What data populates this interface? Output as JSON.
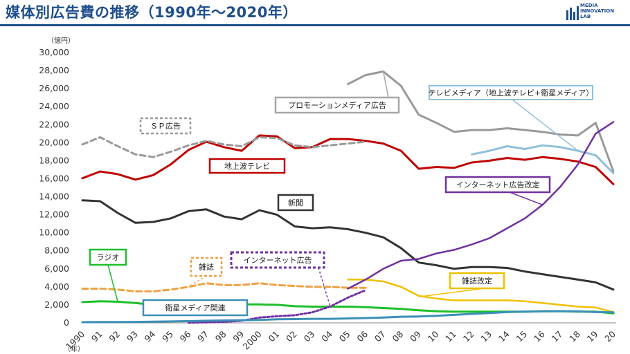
{
  "header": {
    "title": "媒体別広告費の推移（1990年～2020年）",
    "logo": {
      "line1": "MEDIA",
      "line2": "INNOVATION",
      "line3": "LAB"
    }
  },
  "colors": {
    "title": "#1f4e8c",
    "terrestrial_tv": "#c00000",
    "sp": "#999999",
    "promotion": "#999999",
    "tv_media": "#8fc0da",
    "newspaper": "#333333",
    "radio": "#1dbf2a",
    "magazine": "#f0a040",
    "magazine_revised": "#f0c000",
    "internet": "#7030a0",
    "internet_revised": "#7030a0",
    "satellite": "#3a8fb7"
  },
  "chart_data": {
    "type": "line",
    "ylabel_unit": "（億円）",
    "xlabel_unit": "（年）",
    "ylim": [
      0,
      30000
    ],
    "yticks": [
      "0",
      "2,000",
      "4,000",
      "6,000",
      "8,000",
      "10,000",
      "12,000",
      "14,000",
      "16,000",
      "18,000",
      "20,000",
      "22,000",
      "24,000",
      "26,000",
      "28,000",
      "30,000"
    ],
    "x": [
      1990,
      1991,
      1992,
      1993,
      1994,
      1995,
      1996,
      1997,
      1998,
      1999,
      2000,
      2001,
      2002,
      2003,
      2004,
      2005,
      2006,
      2007,
      2008,
      2009,
      2010,
      2011,
      2012,
      2013,
      2014,
      2015,
      2016,
      2017,
      2018,
      2019,
      2020
    ],
    "xticks": [
      "1990",
      "91",
      "92",
      "93",
      "94",
      "95",
      "96",
      "97",
      "98",
      "99",
      "2000",
      "01",
      "02",
      "03",
      "04",
      "05",
      "06",
      "07",
      "08",
      "09",
      "10",
      "11",
      "12",
      "13",
      "14",
      "15",
      "16",
      "17",
      "18",
      "19",
      "20"
    ],
    "grid": false,
    "series": [
      {
        "key": "terrestrial_tv",
        "name": "地上波テレビ",
        "dash": false,
        "x": [
          1990,
          1991,
          1992,
          1993,
          1994,
          1995,
          1996,
          1997,
          1998,
          1999,
          2000,
          2001,
          2002,
          2003,
          2004,
          2005,
          2006,
          2007,
          2008,
          2009,
          2010,
          2011,
          2012,
          2013,
          2014,
          2015,
          2016,
          2017,
          2018,
          2019,
          2020
        ],
        "values": [
          16050,
          16800,
          16500,
          15900,
          16400,
          17600,
          19200,
          20100,
          19500,
          19100,
          20800,
          20700,
          19400,
          19500,
          20400,
          20400,
          20200,
          19900,
          19100,
          17100,
          17300,
          17200,
          17800,
          18000,
          18300,
          18100,
          18400,
          18200,
          17900,
          17300,
          15400
        ]
      },
      {
        "key": "sp",
        "name": "ＳＰ広告",
        "dash": true,
        "x": [
          1990,
          1991,
          1992,
          1993,
          1994,
          1995,
          1996,
          1997,
          1998,
          1999,
          2000,
          2001,
          2002,
          2003,
          2004,
          2005,
          2006
        ],
        "values": [
          19800,
          20600,
          19600,
          18700,
          18400,
          19000,
          19700,
          20200,
          19800,
          19600,
          20600,
          20500,
          19700,
          19500,
          19700,
          19900,
          20100
        ]
      },
      {
        "key": "promotion",
        "name": "プロモーションメディア広告",
        "dash": false,
        "x": [
          2005,
          2006,
          2007,
          2008,
          2009,
          2010,
          2011,
          2012,
          2013,
          2014,
          2015,
          2016,
          2017,
          2018,
          2019,
          2020
        ],
        "values": [
          26500,
          27500,
          27900,
          26300,
          23100,
          22200,
          21200,
          21400,
          21400,
          21600,
          21400,
          21200,
          20900,
          20800,
          22200,
          16800
        ]
      },
      {
        "key": "tv_media",
        "name": "テレビメディア（地上波テレビ+衛星メディア）",
        "dash": false,
        "x": [
          2012,
          2013,
          2014,
          2015,
          2016,
          2017,
          2018,
          2019,
          2020
        ],
        "values": [
          18700,
          19100,
          19600,
          19300,
          19700,
          19500,
          19100,
          18600,
          16600
        ]
      },
      {
        "key": "newspaper",
        "name": "新聞",
        "dash": false,
        "x": [
          1990,
          1991,
          1992,
          1993,
          1994,
          1995,
          1996,
          1997,
          1998,
          1999,
          2000,
          2001,
          2002,
          2003,
          2004,
          2005,
          2006,
          2007,
          2008,
          2009,
          2010,
          2011,
          2012,
          2013,
          2014,
          2015,
          2016,
          2017,
          2018,
          2019,
          2020
        ],
        "values": [
          13600,
          13500,
          12200,
          11100,
          11200,
          11600,
          12400,
          12600,
          11800,
          11500,
          12500,
          12000,
          10700,
          10500,
          10600,
          10400,
          10000,
          9500,
          8300,
          6700,
          6400,
          6000,
          6200,
          6200,
          6100,
          5700,
          5400,
          5100,
          4800,
          4500,
          3700
        ]
      },
      {
        "key": "radio",
        "name": "ラジオ",
        "dash": false,
        "x": [
          1990,
          1991,
          1992,
          1993,
          1994,
          1995,
          1996,
          1997,
          1998,
          1999,
          2000,
          2001,
          2002,
          2003,
          2004,
          2005,
          2006,
          2007,
          2008,
          2009,
          2010,
          2011,
          2012,
          2013,
          2014,
          2015,
          2016,
          2017,
          2018,
          2019,
          2020
        ],
        "values": [
          2300,
          2400,
          2350,
          2200,
          2000,
          2000,
          2150,
          2250,
          2150,
          2050,
          2050,
          2000,
          1850,
          1800,
          1800,
          1800,
          1750,
          1650,
          1550,
          1400,
          1300,
          1250,
          1250,
          1250,
          1250,
          1250,
          1300,
          1300,
          1250,
          1250,
          1050
        ]
      },
      {
        "key": "magazine",
        "name": "雑誌",
        "dash": true,
        "x": [
          1990,
          1991,
          1992,
          1993,
          1994,
          1995,
          1996,
          1997,
          1998,
          1999,
          2000,
          2001,
          2002,
          2003,
          2004,
          2005,
          2006
        ],
        "values": [
          3800,
          3800,
          3700,
          3500,
          3500,
          3700,
          4000,
          4400,
          4200,
          4200,
          4400,
          4200,
          4100,
          4000,
          4000,
          3900,
          3900
        ]
      },
      {
        "key": "magazine_revised",
        "name": "雑誌改定",
        "dash": false,
        "x": [
          2005,
          2006,
          2007,
          2008,
          2009,
          2010,
          2011,
          2012,
          2013,
          2014,
          2015,
          2016,
          2017,
          2018,
          2019,
          2020
        ],
        "values": [
          4800,
          4800,
          4600,
          4000,
          3000,
          2700,
          2500,
          2500,
          2500,
          2500,
          2400,
          2200,
          2000,
          1800,
          1700,
          1200
        ]
      },
      {
        "key": "internet",
        "name": "インターネット広告",
        "dash": true,
        "x": [
          1996,
          1997,
          1998,
          1999,
          2000,
          2001,
          2002,
          2003,
          2004,
          2005,
          2006
        ],
        "values": [
          20,
          60,
          110,
          240,
          590,
          740,
          850,
          1180,
          1810,
          2810,
          3630
        ]
      },
      {
        "key": "internet_revised",
        "name": "インターネット広告改定",
        "dash": false,
        "x": [
          2005,
          2006,
          2007,
          2008,
          2009,
          2010,
          2011,
          2012,
          2013,
          2014,
          2015,
          2016,
          2017,
          2018,
          2019,
          2020
        ],
        "values": [
          3800,
          4800,
          6000,
          6900,
          7100,
          7700,
          8100,
          8700,
          9400,
          10500,
          11600,
          13100,
          15100,
          17600,
          21000,
          22300
        ]
      },
      {
        "key": "satellite",
        "name": "衛星メディア関連",
        "dash": false,
        "x": [
          1990,
          1991,
          1992,
          1993,
          1994,
          1995,
          1996,
          1997,
          1998,
          1999,
          2000,
          2001,
          2002,
          2003,
          2004,
          2005,
          2006,
          2007,
          2008,
          2009,
          2010,
          2011,
          2012,
          2013,
          2014,
          2015,
          2016,
          2017,
          2018,
          2019,
          2020
        ],
        "values": [
          80,
          90,
          100,
          110,
          130,
          160,
          190,
          240,
          270,
          300,
          330,
          400,
          420,
          450,
          450,
          490,
          540,
          600,
          680,
          710,
          780,
          890,
          1000,
          1100,
          1200,
          1240,
          1280,
          1300,
          1280,
          1200,
          1170
        ]
      }
    ],
    "annotations": [
      {
        "key": "promotion",
        "text": "プロモーションメディア広告"
      },
      {
        "key": "tv_media",
        "text": "テレビメディア（地上波テレビ+衛星メディア）"
      },
      {
        "key": "sp",
        "text": "ＳＰ広告"
      },
      {
        "key": "terrestrial_tv",
        "text": "地上波テレビ"
      },
      {
        "key": "internet_revised",
        "text": "インターネット広告改定"
      },
      {
        "key": "newspaper",
        "text": "新聞"
      },
      {
        "key": "radio",
        "text": "ラジオ"
      },
      {
        "key": "magazine",
        "text": "雑誌"
      },
      {
        "key": "internet",
        "text": "インターネット広告"
      },
      {
        "key": "magazine_revised",
        "text": "雑誌改定"
      },
      {
        "key": "satellite",
        "text": "衛星メディア関連"
      }
    ]
  }
}
